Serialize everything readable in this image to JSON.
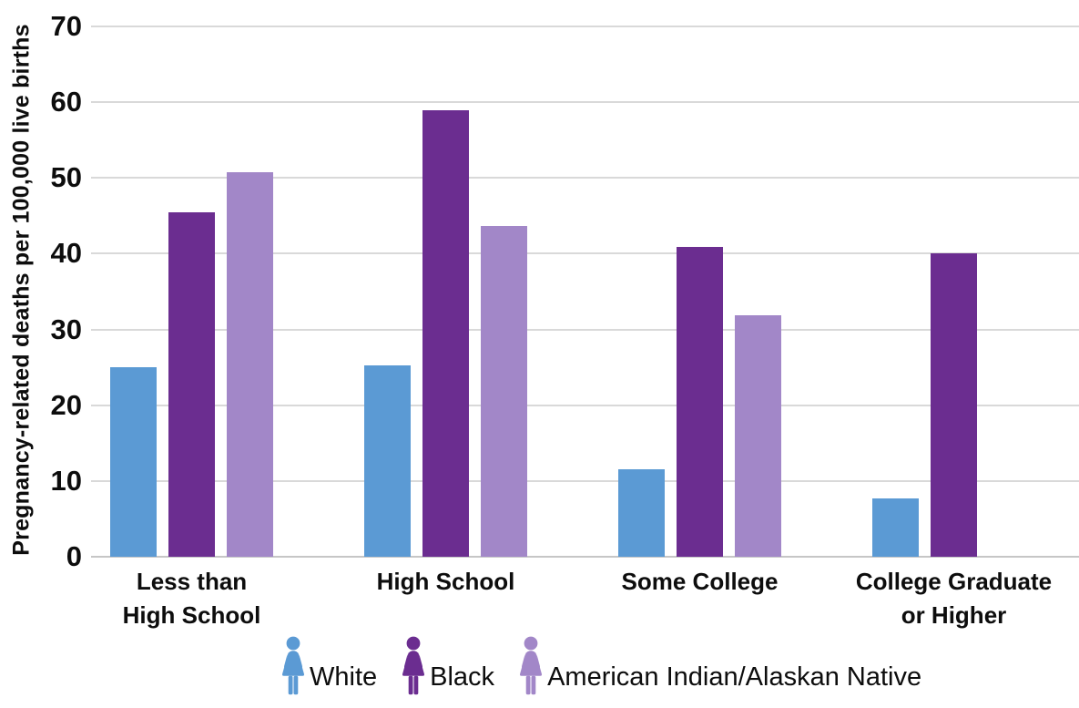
{
  "chart_data": {
    "type": "bar",
    "categories": [
      "Less than\nHigh School",
      "High School",
      "Some College",
      "College Graduate\nor Higher"
    ],
    "series": [
      {
        "name": "White",
        "color": "#5b9ad4",
        "values": [
          25.0,
          25.2,
          11.6,
          7.7
        ]
      },
      {
        "name": "Black",
        "color": "#6b2d90",
        "values": [
          45.5,
          58.9,
          40.9,
          40.0
        ]
      },
      {
        "name": "American Indian/Alaskan Native",
        "color": "#a287c8",
        "values": [
          50.8,
          43.6,
          31.9,
          null
        ]
      }
    ],
    "title": "",
    "xlabel": "",
    "ylabel": "Pregnancy-related deaths per 100,000 live births",
    "ylim": [
      0,
      70
    ],
    "yticks": [
      "0",
      "10",
      "20",
      "30",
      "40",
      "50",
      "60",
      "70"
    ],
    "grid": true,
    "legend_position": "bottom",
    "legend_icon": "female-figure"
  },
  "colors": {
    "background": "#ffffff",
    "gridline": "#d9d9d9",
    "axis_line": "#c6c6c6",
    "text": "#0d0d0d"
  }
}
